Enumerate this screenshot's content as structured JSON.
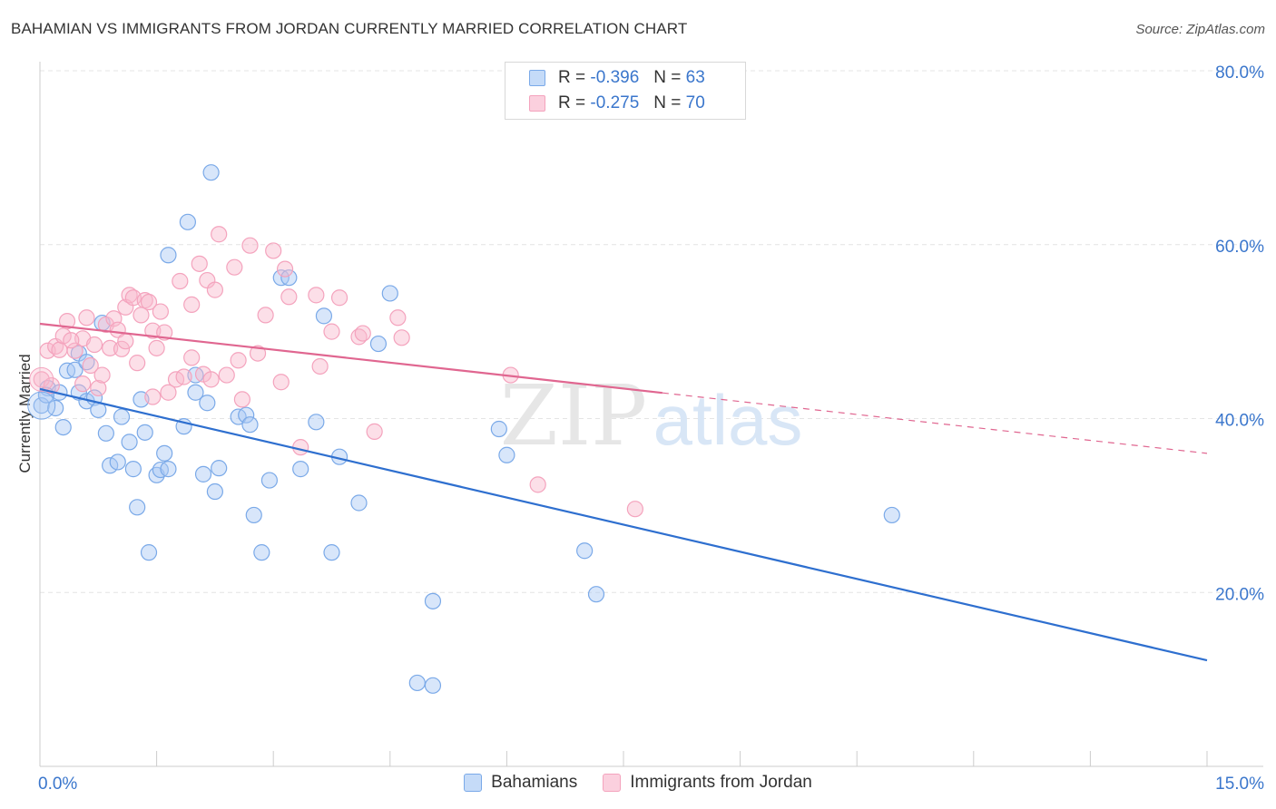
{
  "header": {
    "title": "BAHAMIAN VS IMMIGRANTS FROM JORDAN CURRENTLY MARRIED CORRELATION CHART",
    "source": "Source: ZipAtlas.com"
  },
  "watermark": {
    "zip": "ZIP",
    "atlas": "atlas"
  },
  "legend": {
    "r_label": "R =",
    "n_label": "N =",
    "rows": [
      {
        "r": "-0.396",
        "n": "63",
        "color": "#a8c8f4"
      },
      {
        "r": "-0.275",
        "n": "70",
        "color": "#f8b8cc"
      }
    ]
  },
  "chart_data": {
    "type": "scatter",
    "title": "BAHAMIAN VS IMMIGRANTS FROM JORDAN CURRENTLY MARRIED CORRELATION CHART",
    "xlabel": "",
    "ylabel": "Currently Married",
    "xlim": [
      0,
      15
    ],
    "ylim": [
      0,
      80
    ],
    "x_ticks": [
      {
        "value": 0,
        "label": "0.0%"
      },
      {
        "value": 15,
        "label": "15.0%"
      }
    ],
    "y_ticks": [
      {
        "value": 20,
        "label": "20.0%"
      },
      {
        "value": 40,
        "label": "40.0%"
      },
      {
        "value": 60,
        "label": "60.0%"
      },
      {
        "value": 80,
        "label": "80.0%"
      }
    ],
    "grid": true,
    "legend_position": "top-center",
    "series": [
      {
        "name": "Bahamians",
        "color": "#7aa9e8",
        "line_color": "#2e6fcf",
        "trend": {
          "x0": 0,
          "y0": 43.4,
          "x1": 15,
          "y1": 12.2,
          "solid_to": 15
        },
        "points": [
          [
            0.02,
            41.5
          ],
          [
            0.1,
            43.5
          ],
          [
            0.2,
            41.2
          ],
          [
            0.25,
            43.0
          ],
          [
            0.35,
            45.5
          ],
          [
            0.45,
            45.6
          ],
          [
            0.5,
            43.0
          ],
          [
            0.5,
            47.5
          ],
          [
            0.6,
            42.0
          ],
          [
            0.7,
            42.4
          ],
          [
            0.8,
            51.0
          ],
          [
            0.75,
            41.0
          ],
          [
            0.85,
            38.3
          ],
          [
            1.05,
            40.2
          ],
          [
            0.9,
            34.6
          ],
          [
            1.15,
            37.3
          ],
          [
            1.2,
            34.2
          ],
          [
            1.3,
            42.2
          ],
          [
            1.35,
            38.4
          ],
          [
            1.25,
            29.8
          ],
          [
            1.4,
            24.6
          ],
          [
            1.5,
            33.5
          ],
          [
            1.55,
            34.1
          ],
          [
            1.6,
            36.0
          ],
          [
            1.65,
            34.2
          ],
          [
            1.85,
            39.1
          ],
          [
            1.9,
            62.6
          ],
          [
            1.65,
            58.8
          ],
          [
            2.0,
            45.0
          ],
          [
            2.1,
            33.6
          ],
          [
            2.0,
            43.0
          ],
          [
            2.2,
            68.3
          ],
          [
            2.25,
            31.6
          ],
          [
            2.3,
            34.3
          ],
          [
            2.55,
            40.2
          ],
          [
            2.65,
            40.4
          ],
          [
            2.7,
            39.3
          ],
          [
            2.75,
            28.9
          ],
          [
            2.85,
            24.6
          ],
          [
            2.95,
            32.9
          ],
          [
            3.1,
            56.2
          ],
          [
            3.2,
            56.2
          ],
          [
            3.35,
            34.2
          ],
          [
            3.55,
            39.6
          ],
          [
            3.75,
            24.6
          ],
          [
            3.85,
            35.6
          ],
          [
            3.65,
            51.8
          ],
          [
            4.1,
            30.3
          ],
          [
            4.35,
            48.6
          ],
          [
            4.5,
            54.4
          ],
          [
            4.85,
            9.6
          ],
          [
            5.05,
            9.3
          ],
          [
            5.05,
            19.0
          ],
          [
            5.9,
            38.8
          ],
          [
            6.0,
            35.8
          ],
          [
            7.0,
            24.8
          ],
          [
            7.15,
            19.8
          ],
          [
            10.95,
            28.9
          ],
          [
            0.08,
            42.7
          ],
          [
            0.3,
            39.0
          ],
          [
            0.6,
            46.5
          ],
          [
            1.0,
            35.0
          ],
          [
            2.15,
            41.8
          ]
        ]
      },
      {
        "name": "Immigrants from Jordan",
        "color": "#f4a3bd",
        "line_color": "#e06690",
        "trend": {
          "x0": 0,
          "y0": 50.9,
          "x1": 15,
          "y1": 36.0,
          "solid_to": 8.0
        },
        "points": [
          [
            0.02,
            44.5
          ],
          [
            0.1,
            47.8
          ],
          [
            0.2,
            48.3
          ],
          [
            0.25,
            47.9
          ],
          [
            0.3,
            49.5
          ],
          [
            0.35,
            51.2
          ],
          [
            0.45,
            47.8
          ],
          [
            0.55,
            49.2
          ],
          [
            0.6,
            51.6
          ],
          [
            0.65,
            46.1
          ],
          [
            0.7,
            48.5
          ],
          [
            0.75,
            43.5
          ],
          [
            0.85,
            50.8
          ],
          [
            0.9,
            48.1
          ],
          [
            0.95,
            51.5
          ],
          [
            1.0,
            50.2
          ],
          [
            1.05,
            48.0
          ],
          [
            1.1,
            52.8
          ],
          [
            1.15,
            54.2
          ],
          [
            1.2,
            53.9
          ],
          [
            1.25,
            46.4
          ],
          [
            1.3,
            51.9
          ],
          [
            1.35,
            53.6
          ],
          [
            1.4,
            53.4
          ],
          [
            1.45,
            50.1
          ],
          [
            1.5,
            48.1
          ],
          [
            1.55,
            52.3
          ],
          [
            1.6,
            49.9
          ],
          [
            1.65,
            43.0
          ],
          [
            1.75,
            44.5
          ],
          [
            1.8,
            55.8
          ],
          [
            1.85,
            44.8
          ],
          [
            1.95,
            53.1
          ],
          [
            2.05,
            57.8
          ],
          [
            2.1,
            45.1
          ],
          [
            2.15,
            55.9
          ],
          [
            2.2,
            44.5
          ],
          [
            2.25,
            54.8
          ],
          [
            2.3,
            61.2
          ],
          [
            2.4,
            45.0
          ],
          [
            2.5,
            57.4
          ],
          [
            2.55,
            46.7
          ],
          [
            2.7,
            59.9
          ],
          [
            2.8,
            47.5
          ],
          [
            2.9,
            51.9
          ],
          [
            3.0,
            59.3
          ],
          [
            3.1,
            44.2
          ],
          [
            3.15,
            57.2
          ],
          [
            3.2,
            54.0
          ],
          [
            3.35,
            36.7
          ],
          [
            3.55,
            54.2
          ],
          [
            3.6,
            46.0
          ],
          [
            3.75,
            50.0
          ],
          [
            3.85,
            53.9
          ],
          [
            4.1,
            49.4
          ],
          [
            4.15,
            49.8
          ],
          [
            4.3,
            38.5
          ],
          [
            4.6,
            51.6
          ],
          [
            4.65,
            49.3
          ],
          [
            6.05,
            45.0
          ],
          [
            6.4,
            32.4
          ],
          [
            7.65,
            29.6
          ],
          [
            0.15,
            43.8
          ],
          [
            0.4,
            49.0
          ],
          [
            0.8,
            45.0
          ],
          [
            1.45,
            42.5
          ],
          [
            1.95,
            47.0
          ],
          [
            2.6,
            42.2
          ],
          [
            0.55,
            44.0
          ],
          [
            1.1,
            48.9
          ]
        ]
      }
    ]
  },
  "bottom_legend": [
    {
      "label": "Bahamians",
      "color": "#a8c8f4"
    },
    {
      "label": "Immigrants from Jordan",
      "color": "#f8b8cc"
    }
  ]
}
